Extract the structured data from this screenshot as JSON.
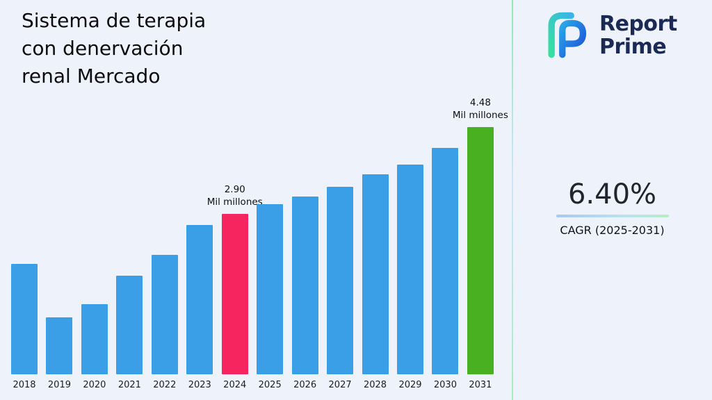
{
  "title": {
    "lines": [
      "Sistema de terapia",
      "con denervación",
      "renal Mercado"
    ]
  },
  "logo": {
    "name_line1": "Report",
    "name_line2": "Prime"
  },
  "cagr": {
    "value": "6.40%",
    "label": "CAGR (2025-2031)"
  },
  "chart_data": {
    "type": "bar",
    "title": "Sistema de terapia con denervación renal Mercado",
    "xlabel": "",
    "ylabel": "",
    "unit": "Mil millones",
    "categories": [
      "2018",
      "2019",
      "2020",
      "2021",
      "2022",
      "2023",
      "2024",
      "2025",
      "2026",
      "2027",
      "2028",
      "2029",
      "2030",
      "2031"
    ],
    "values": [
      2.0,
      1.03,
      1.27,
      1.79,
      2.17,
      2.71,
      2.9,
      3.08,
      3.22,
      3.4,
      3.62,
      3.8,
      4.1,
      4.48
    ],
    "ylim": [
      0,
      4.8
    ],
    "grid": false,
    "legend": false,
    "bar_color": "#3b9fe8",
    "highlights": {
      "2024": "#f6255f",
      "2031": "#49b021"
    },
    "annotations": [
      {
        "category": "2024",
        "value": "2.90",
        "unit": "Mil millones"
      },
      {
        "category": "2031",
        "value": "4.48",
        "unit": "Mil millones"
      }
    ]
  }
}
